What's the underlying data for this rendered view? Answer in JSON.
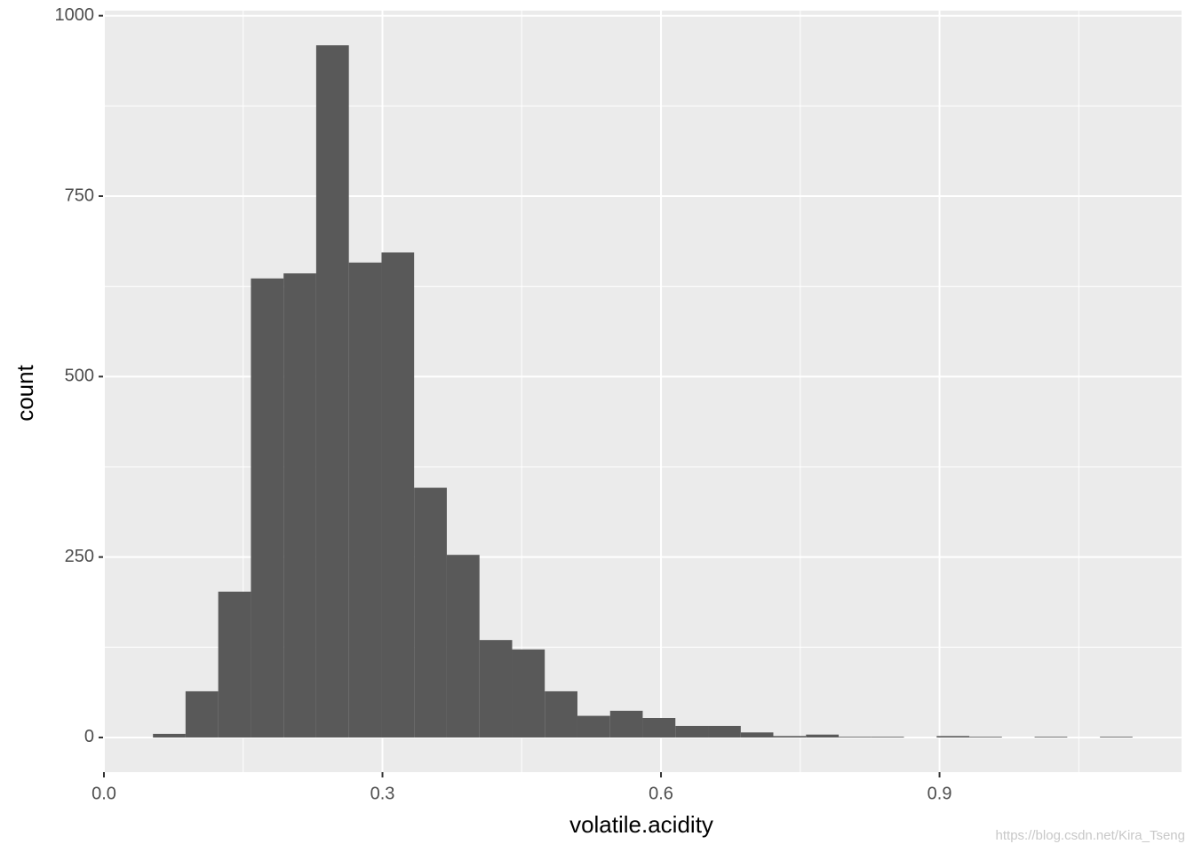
{
  "chart_data": {
    "type": "histogram",
    "x_label": "volatile.acidity",
    "y_label": "count",
    "bins": [
      0.0528,
      0.0879,
      0.1231,
      0.1583,
      0.1935,
      0.2286,
      0.2638,
      0.299,
      0.3341,
      0.3693,
      0.4045,
      0.4397,
      0.4748,
      0.51,
      0.5452,
      0.5803,
      0.6155,
      0.6507,
      0.6859,
      0.721,
      0.7562,
      0.7914,
      0.8265,
      0.8617,
      0.8969,
      0.9321,
      0.9672,
      1.0024,
      1.0376,
      1.0728,
      1.1079
    ],
    "counts": [
      5,
      64,
      202,
      636,
      643,
      959,
      658,
      672,
      346,
      253,
      135,
      122,
      64,
      30,
      37,
      27,
      16,
      16,
      7,
      2,
      4,
      1,
      1,
      0,
      2,
      1,
      0,
      1,
      0,
      1
    ],
    "color": "#595959",
    "xlim": [
      0,
      1.1607
    ],
    "ylim": [
      -48,
      1007
    ],
    "xticks": [
      {
        "value": 0,
        "label": "0.0"
      },
      0.3,
      0.6,
      0.9
    ],
    "yticks": [
      0,
      250,
      500,
      750,
      1000
    ],
    "x_minor_grid": [
      0.15,
      0.45,
      0.75,
      1.05
    ],
    "y_minor_grid": [
      125,
      375,
      625,
      875
    ],
    "grid": true,
    "watermark": "https://blog.csdn.net/Kira_Tseng"
  }
}
